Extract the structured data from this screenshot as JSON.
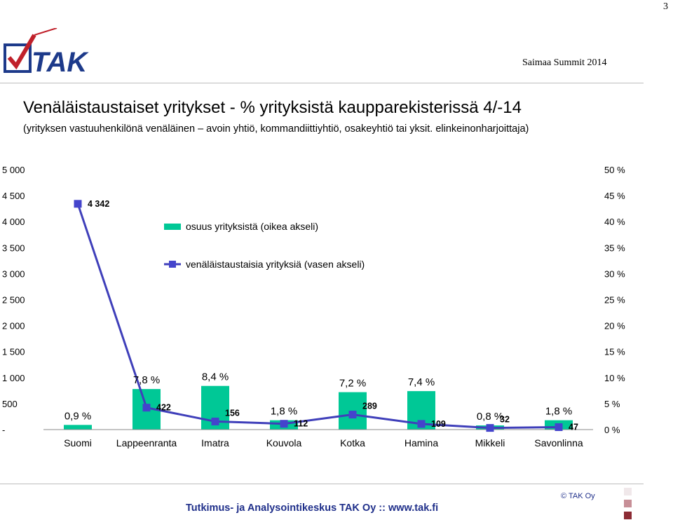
{
  "page_number": "3",
  "header": {
    "event": "Saimaa Summit 2014",
    "logo_text": "TAK"
  },
  "title": "Venäläistaustaiset yritykset - % yrityksistä kaupparekisterissä 4/-14",
  "subtitle": "(yrityksen vastuuhenkilönä venäläinen – avoin yhtiö, kommandiittiyhtiö, osakeyhtiö tai yksit. elinkeinonharjoittaja)",
  "footer": {
    "text": "Tutkimus- ja Analysointikeskus TAK Oy  ::  www.tak.fi",
    "copyright": "© TAK Oy",
    "square_colors": [
      "#f0e8ea",
      "#c78f97",
      "#8c2b34"
    ]
  },
  "colors": {
    "bar": "#00c896",
    "line": "#3f3fba",
    "marker": "#4444cc"
  },
  "chart_data": {
    "type": "bar+line",
    "categories": [
      "Suomi",
      "Lappeenranta",
      "Imatra",
      "Kouvola",
      "Kotka",
      "Hamina",
      "Mikkeli",
      "Savonlinna"
    ],
    "series": [
      {
        "name": "osuus yrityksistä (oikea akseli)",
        "type": "bar",
        "axis": "right",
        "values": [
          0.9,
          7.8,
          8.4,
          1.8,
          7.2,
          7.4,
          0.8,
          1.8
        ],
        "labels": [
          "0,9 %",
          "7,8 %",
          "8,4 %",
          "1,8 %",
          "7,2 %",
          "7,4 %",
          "0,8 %",
          "1,8 %"
        ]
      },
      {
        "name": "venäläistaustaisia yrityksiä (vasen akseli)",
        "type": "line",
        "axis": "left",
        "values": [
          4342,
          422,
          156,
          112,
          289,
          109,
          32,
          47
        ],
        "labels": [
          "4 342",
          "422",
          "156",
          "112",
          "289",
          "109",
          "32",
          "47"
        ]
      }
    ],
    "y_left": {
      "range": [
        0,
        5000
      ],
      "tick_labels": [
        "-",
        "500",
        "1 000",
        "1 500",
        "2 000",
        "2 500",
        "3 000",
        "3 500",
        "4 000",
        "4 500",
        "5 000"
      ]
    },
    "y_right": {
      "range": [
        0,
        50
      ],
      "tick_labels": [
        "0 %",
        "5 %",
        "10 %",
        "15 %",
        "20 %",
        "25 %",
        "30 %",
        "35 %",
        "40 %",
        "45 %",
        "50 %"
      ]
    },
    "grid": false,
    "legend": "inside-upper-center"
  }
}
